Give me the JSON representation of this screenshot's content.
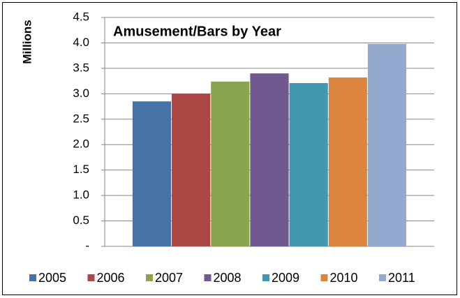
{
  "chart_data": {
    "type": "bar",
    "title": "Amusement/Bars by Year",
    "y_label": "Millions",
    "categories": [
      null
    ],
    "series": [
      {
        "name": "2005",
        "color": "#4572a7",
        "values": [
          2.85
        ]
      },
      {
        "name": "2006",
        "color": "#aa4643",
        "values": [
          3.0
        ]
      },
      {
        "name": "2007",
        "color": "#89a54e",
        "values": [
          3.24
        ]
      },
      {
        "name": "2008",
        "color": "#71588f",
        "values": [
          3.4
        ]
      },
      {
        "name": "2009",
        "color": "#4198af",
        "values": [
          3.21
        ]
      },
      {
        "name": "2010",
        "color": "#db843d",
        "values": [
          3.32
        ]
      },
      {
        "name": "2011",
        "color": "#93a9cf",
        "values": [
          3.98
        ]
      }
    ],
    "ylim": [
      0,
      4.5
    ],
    "yticks": [
      {
        "value": 0,
        "label": "-"
      },
      0.5,
      {
        "value": 1,
        "label": "1.0"
      },
      1.5,
      {
        "value": 2,
        "label": "2.0"
      },
      2.5,
      {
        "value": 3,
        "label": "3.0"
      },
      3.5,
      {
        "value": 4,
        "label": "4.0"
      },
      4.5
    ],
    "grid": true,
    "legend": "bottom"
  }
}
